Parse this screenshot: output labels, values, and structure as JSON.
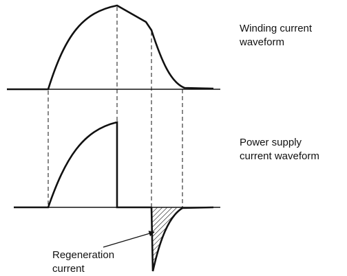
{
  "labels": {
    "winding": [
      "Winding current",
      "waveform"
    ],
    "supply": [
      "Power supply",
      "current waveform"
    ],
    "regeneration": [
      "Regeneration",
      "current"
    ]
  }
}
